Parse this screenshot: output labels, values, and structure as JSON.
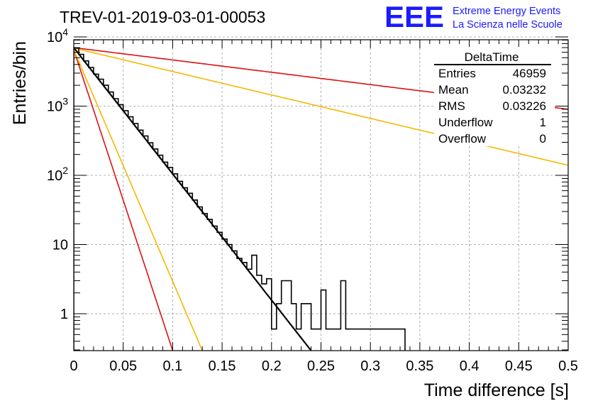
{
  "chart_data": {
    "type": "line",
    "title": "TREV-01-2019-03-01-00053",
    "xlabel": "Time difference [s]",
    "ylabel": "Entries/bin",
    "xlim": [
      0,
      0.5
    ],
    "ylim": [
      0.25,
      12000
    ],
    "yscale": "log",
    "grid": true,
    "x_ticks": [
      "0",
      "0.05",
      "0.1",
      "0.15",
      "0.2",
      "0.25",
      "0.3",
      "0.35",
      "0.4",
      "0.45",
      "0.5"
    ],
    "y_ticks": [
      {
        "value": 1,
        "base": "1",
        "exp": ""
      },
      {
        "value": 10,
        "base": "10",
        "exp": ""
      },
      {
        "value": 100,
        "base": "10",
        "exp": "2"
      },
      {
        "value": 1000,
        "base": "10",
        "exp": "3"
      },
      {
        "value": 10000,
        "base": "10",
        "exp": "4"
      }
    ],
    "histogram": {
      "name": "DeltaTime",
      "color": "#000000",
      "bin_width": 0.005,
      "counts": [
        6900,
        5600,
        4500,
        3620,
        2900,
        2450,
        2000,
        1600,
        1280,
        1050,
        860,
        700,
        560,
        450,
        370,
        295,
        240,
        195,
        155,
        130,
        105,
        82,
        66,
        55,
        44,
        35,
        28,
        23,
        18.5,
        15,
        12,
        10,
        8.1,
        6.3,
        5.5,
        4.4,
        7.0,
        3.6,
        2.7,
        3.2,
        0.6,
        1.4,
        3.0,
        3.0,
        1.4,
        0.6,
        1.4,
        1.4,
        0.6,
        0.6,
        2.2,
        0.6,
        0.6,
        0.6,
        3.0,
        0.6,
        0.6,
        0.6,
        0.6,
        0.6,
        0.6,
        0.6,
        0.6,
        0.6,
        0.6,
        0.6,
        0.6
      ]
    },
    "fits": [
      {
        "color": "#000000",
        "y0": 7000,
        "slope": -42.0,
        "width": 2.2
      },
      {
        "color": "#dd1111",
        "y0": 7000,
        "slope": -4.1,
        "width": 1.6
      },
      {
        "color": "#f5b800",
        "y0": 6900,
        "slope": -7.8,
        "width": 1.6
      },
      {
        "color": "#dd1111",
        "y0": 6500,
        "slope": -100.0,
        "width": 1.6
      },
      {
        "color": "#f5b800",
        "y0": 6500,
        "slope": -77.0,
        "width": 1.6
      }
    ]
  },
  "stats": {
    "title": "DeltaTime",
    "rows": [
      {
        "label": "Entries",
        "value": "46959"
      },
      {
        "label": "Mean",
        "value": "0.03232"
      },
      {
        "label": "RMS",
        "value": "0.03226"
      },
      {
        "label": "Underflow",
        "value": "1"
      },
      {
        "label": "Overflow",
        "value": "0"
      }
    ]
  },
  "logo": {
    "text": "EEE",
    "line1": "Extreme Energy Events",
    "line2": "La Scienza nelle Scuole",
    "color": "#1a1aff"
  }
}
